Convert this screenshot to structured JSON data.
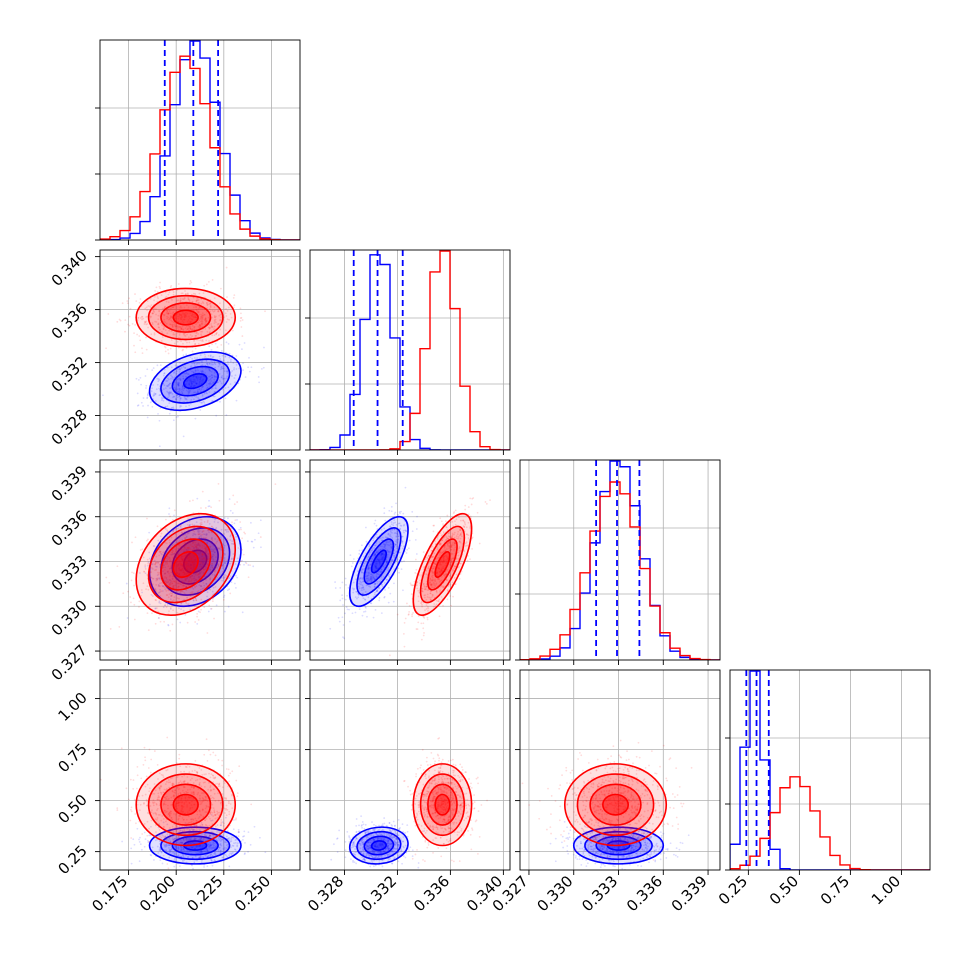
{
  "chart_data": {
    "type": "corner",
    "grid": true,
    "series": [
      {
        "color_name": "blue",
        "color": "#0000ff"
      },
      {
        "color_name": "red",
        "color": "#ff0000"
      }
    ],
    "parameters": [
      {
        "range": [
          0.16,
          0.265
        ],
        "ticks": [
          0.175,
          0.2,
          0.225,
          0.25
        ],
        "tick_labels": [
          "0.175",
          "0.200",
          "0.225",
          "0.250"
        ],
        "mean": [
          0.21,
          0.205
        ],
        "sd": [
          0.012,
          0.013
        ],
        "quantiles_blue": [
          0.194,
          0.209,
          0.222
        ]
      },
      {
        "range": [
          0.3254,
          0.3405
        ],
        "ticks": [
          0.328,
          0.332,
          0.336,
          0.34
        ],
        "tick_labels": [
          "0.328",
          "0.332",
          "0.336",
          "0.340"
        ],
        "mean": [
          0.3306,
          0.3354
        ],
        "sd": [
          0.0011,
          0.0011
        ],
        "quantiles_blue": [
          0.3287,
          0.3305,
          0.3324
        ]
      },
      {
        "range": [
          0.3264,
          0.3398
        ],
        "ticks": [
          0.327,
          0.33,
          0.333,
          0.336,
          0.339
        ],
        "tick_labels": [
          "0.327",
          "0.330",
          "0.333",
          "0.336",
          "0.339"
        ],
        "mean": [
          0.333,
          0.3328
        ],
        "sd": [
          0.0015,
          0.0017
        ],
        "quantiles_blue": [
          0.3315,
          0.3329,
          0.3344
        ]
      },
      {
        "range": [
          0.16,
          1.14
        ],
        "ticks": [
          0.25,
          0.5,
          0.75,
          1.0
        ],
        "tick_labels": [
          "0.25",
          "0.50",
          "0.75",
          "1.00"
        ],
        "mean": [
          0.28,
          0.48
        ],
        "sd": [
          0.045,
          0.1
        ],
        "quantiles_blue": [
          0.24,
          0.29,
          0.35
        ]
      }
    ],
    "correlations": {
      "1-0": [
        0.35,
        0.0
      ],
      "2-0": [
        0.25,
        0.3
      ],
      "2-1": [
        0.7,
        0.7
      ],
      "3-0": [
        0.0,
        0.0
      ],
      "3-1": [
        0.1,
        0.0
      ],
      "3-2": [
        0.0,
        0.0
      ]
    },
    "histogram_bins": 20,
    "contour_levels_sigma": [
      0.5,
      1.0,
      1.5,
      2.0
    ]
  }
}
